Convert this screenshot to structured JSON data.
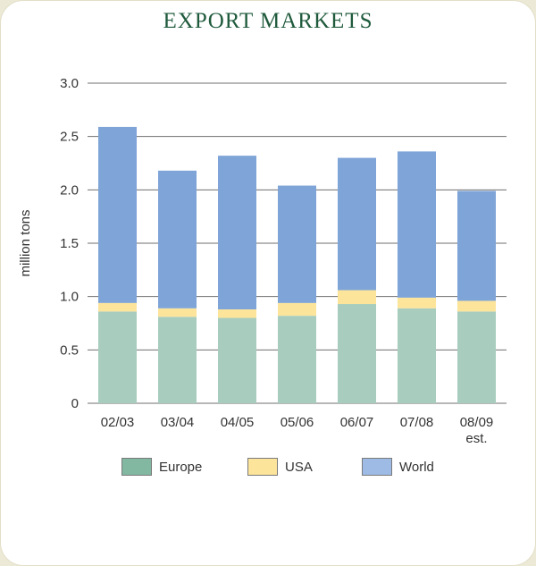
{
  "chart_data": {
    "type": "bar",
    "stacked": true,
    "title": "EXPORT MARKETS",
    "ylabel": "million tons",
    "xlabel": "",
    "ylim": [
      0,
      3.0
    ],
    "yticks": [
      "0",
      "0.5",
      "1.0",
      "1.5",
      "2.0",
      "2.5",
      "3.0"
    ],
    "grid": true,
    "legend_position": "bottom",
    "categories": [
      [
        "02/03"
      ],
      [
        "03/04"
      ],
      [
        "04/05"
      ],
      [
        "05/06"
      ],
      [
        "06/07"
      ],
      [
        "07/08"
      ],
      [
        "08/09",
        "est."
      ]
    ],
    "series": [
      {
        "name": "Europe",
        "color": "#a8cdbf",
        "values": [
          0.86,
          0.81,
          0.8,
          0.82,
          0.93,
          0.89,
          0.86
        ]
      },
      {
        "name": "USA",
        "color": "#fce49b",
        "values": [
          0.08,
          0.08,
          0.08,
          0.12,
          0.13,
          0.1,
          0.1
        ]
      },
      {
        "name": "World",
        "color": "#7ea4d8",
        "values": [
          1.65,
          1.29,
          1.44,
          1.1,
          1.24,
          1.37,
          1.03
        ]
      }
    ],
    "legend_swatches": [
      "#82b8a2",
      "#fce49b",
      "#9ebbe6"
    ]
  }
}
